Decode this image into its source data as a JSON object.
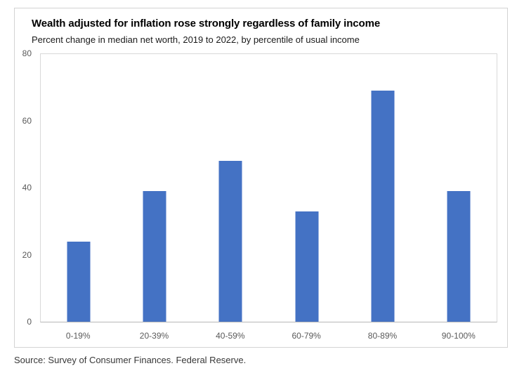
{
  "chart_data": {
    "type": "bar",
    "title": "Wealth adjusted for inflation rose strongly regardless of family income",
    "subtitle": "Percent change in median net worth, 2019 to 2022, by percentile of usual income",
    "source": "Source: Survey of Consumer Finances. Federal Reserve.",
    "categories": [
      "0-19%",
      "20-39%",
      "40-59%",
      "60-79%",
      "80-89%",
      "90-100%"
    ],
    "values": [
      24,
      39,
      48,
      33,
      69,
      39
    ],
    "xlabel": "",
    "ylabel": "",
    "ylim": [
      0,
      80
    ],
    "yticks": [
      0,
      20,
      40,
      60,
      80
    ],
    "grid": false,
    "legend": false,
    "colors": {
      "bar": "#4472C4",
      "axis_labels": "#595959",
      "card_border": "#d3d3d3",
      "plot_border": "#d9d9d9",
      "axis_line": "#b7b7b7",
      "title": "#000000",
      "source": "#383838"
    }
  }
}
